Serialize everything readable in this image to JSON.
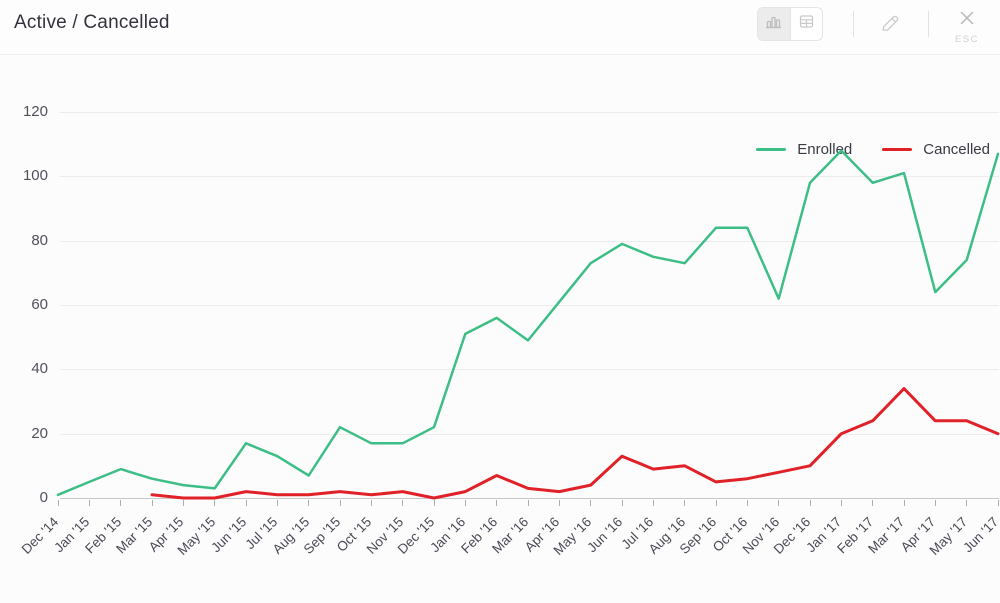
{
  "header": {
    "title": "Active / Cancelled",
    "toolbar": {
      "chart_view_icon": "bar-chart-icon",
      "table_view_icon": "table-icon",
      "edit_icon": "pencil-icon",
      "close_icon": "x-icon",
      "esc_label": "ESC"
    }
  },
  "colors": {
    "enrolled": "#3dbe86",
    "cancelled": "#e02128",
    "grid": "#ececec",
    "axis_text": "#4b4b57",
    "icon_gray": "#c4c4c4"
  },
  "chart_data": {
    "type": "line",
    "title": "Active / Cancelled",
    "categories": [
      "Dec '14",
      "Jan '15",
      "Feb '15",
      "Mar '15",
      "Apr '15",
      "May '15",
      "Jun '15",
      "Jul '15",
      "Aug '15",
      "Sep '15",
      "Oct '15",
      "Nov '15",
      "Dec '15",
      "Jan '16",
      "Feb '16",
      "Mar '16",
      "Apr '16",
      "May '16",
      "Jun '16",
      "Jul '16",
      "Aug '16",
      "Sep '16",
      "Oct '16",
      "Nov '16",
      "Dec '16",
      "Jan '17",
      "Feb '17",
      "Mar '17",
      "Apr '17",
      "May '17",
      "Jun '17"
    ],
    "series": [
      {
        "name": "Enrolled",
        "color": "#3dbe86",
        "values": [
          1,
          5,
          9,
          6,
          4,
          3,
          17,
          13,
          7,
          22,
          17,
          17,
          22,
          51,
          56,
          49,
          61,
          73,
          79,
          75,
          73,
          84,
          84,
          62,
          98,
          108,
          98,
          101,
          64,
          74,
          107
        ]
      },
      {
        "name": "Cancelled",
        "color": "#e02128",
        "values": [
          null,
          null,
          null,
          1,
          0,
          0,
          2,
          1,
          1,
          2,
          1,
          2,
          0,
          2,
          7,
          3,
          2,
          4,
          13,
          9,
          10,
          5,
          6,
          8,
          10,
          20,
          24,
          34,
          24,
          24,
          20
        ]
      }
    ],
    "ylim": [
      0,
      120
    ],
    "yticks": [
      0,
      20,
      40,
      60,
      80,
      100,
      120
    ],
    "grid": true,
    "legend_position": "top-right",
    "x_label_rotation": -45
  }
}
